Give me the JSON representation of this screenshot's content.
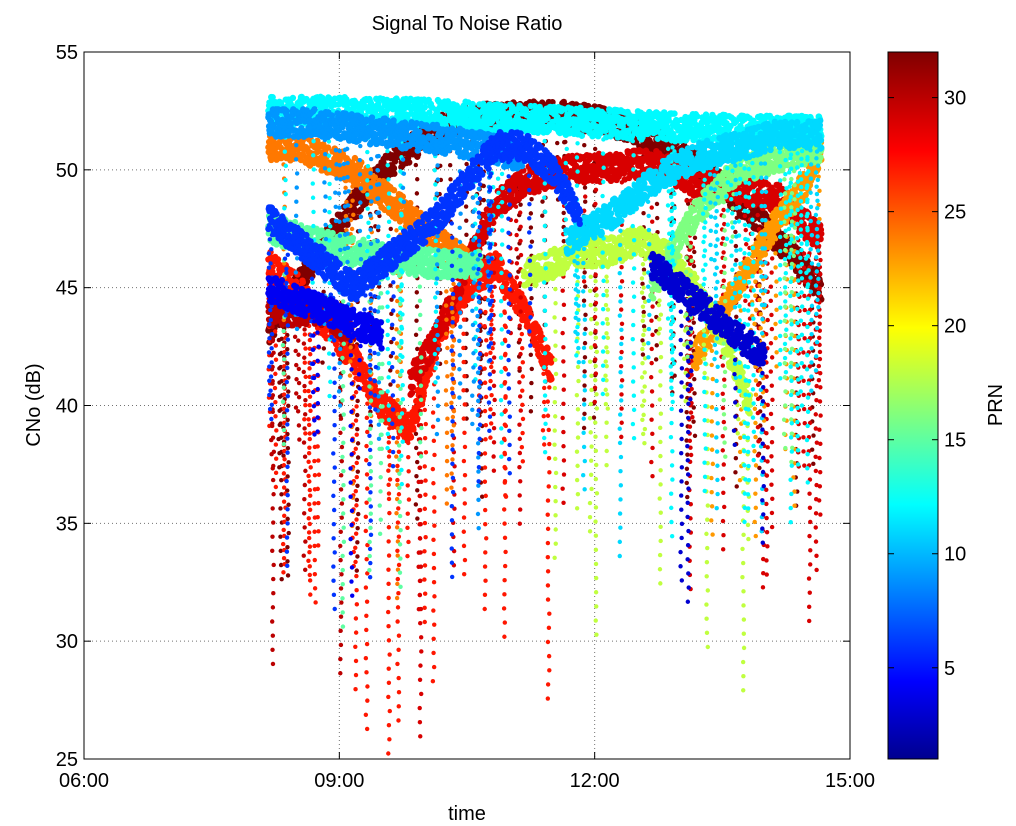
{
  "chart_data": {
    "type": "scatter",
    "title": "Signal To Noise Ratio",
    "xlabel": "time",
    "ylabel": "CNo (dB)",
    "xlim": [
      "06:00",
      "15:00"
    ],
    "ylim": [
      25,
      55
    ],
    "x_ticks": [
      "06:00",
      "09:00",
      "12:00",
      "15:00"
    ],
    "y_ticks": [
      25,
      30,
      35,
      40,
      45,
      50,
      55
    ],
    "grid": true,
    "color_by": "PRN",
    "colorbar": {
      "label": "PRN",
      "range": [
        1,
        32
      ],
      "ticks": [
        5,
        10,
        15,
        20,
        25,
        30
      ],
      "colormap": "jet",
      "colors": [
        "#00008f",
        "#0000ff",
        "#00ffff",
        "#ffff00",
        "#ff0000",
        "#800000"
      ]
    },
    "series": [
      {
        "prn": 32,
        "x": [
          "08:10",
          "08:40",
          "09:10",
          "09:40",
          "10:10",
          "10:40",
          "11:10",
          "11:40",
          "12:10",
          "12:40",
          "13:10",
          "13:40",
          "14:10",
          "14:40"
        ],
        "y": [
          43,
          46,
          48.5,
          50.5,
          51.8,
          52.2,
          52.3,
          52.3,
          52,
          51.4,
          50.2,
          48.8,
          47,
          45
        ]
      },
      {
        "prn": 27,
        "x": [
          "08:10",
          "08:30",
          "08:50",
          "09:10",
          "09:30",
          "09:50",
          "10:10",
          "10:30",
          "10:50",
          "11:10",
          "11:30"
        ],
        "y": [
          46,
          45,
          43.5,
          42,
          40,
          39,
          43,
          45,
          46,
          44,
          41.5
        ]
      },
      {
        "prn": 29,
        "x": [
          "09:50",
          "10:10",
          "10:30",
          "10:50",
          "11:10",
          "11:40",
          "12:10",
          "12:40",
          "13:10",
          "13:40",
          "14:10",
          "14:40"
        ],
        "y": [
          41,
          43,
          46,
          48.5,
          49.5,
          50,
          50.1,
          50.3,
          49.5,
          49.2,
          48.8,
          47
        ]
      },
      {
        "prn": 30,
        "x": [
          "08:10",
          "08:30",
          "08:50",
          "09:10"
        ],
        "y": [
          44,
          44,
          44,
          43
        ]
      },
      {
        "prn": 24,
        "x": [
          "08:10",
          "08:30",
          "08:50",
          "09:10",
          "09:30",
          "09:50",
          "10:10",
          "10:30"
        ],
        "y": [
          51,
          51,
          50.5,
          50,
          49,
          48,
          47,
          46
        ]
      },
      {
        "prn": 23,
        "x": [
          "13:10",
          "13:30",
          "13:50",
          "14:10",
          "14:30",
          "14:40"
        ],
        "y": [
          42,
          44,
          46,
          48,
          49.5,
          51
        ]
      },
      {
        "prn": 18,
        "x": [
          "11:10",
          "11:30",
          "11:50",
          "12:10",
          "12:30",
          "12:50",
          "13:10",
          "13:30",
          "13:50"
        ],
        "y": [
          45.5,
          46,
          46.5,
          46.5,
          47,
          46.5,
          45,
          43,
          40
        ]
      },
      {
        "prn": 15,
        "x": [
          "08:10",
          "08:40",
          "09:10",
          "09:40",
          "10:10",
          "10:40"
        ],
        "y": [
          47.5,
          47,
          46.5,
          46.2,
          46,
          46
        ]
      },
      {
        "prn": 16,
        "x": [
          "12:40",
          "13:10",
          "13:40",
          "14:10",
          "14:40"
        ],
        "y": [
          45,
          48,
          50,
          50.5,
          51
        ]
      },
      {
        "prn": 12,
        "x": [
          "08:10",
          "09:00",
          "10:00",
          "11:00",
          "12:00",
          "13:00",
          "14:00",
          "14:40"
        ],
        "y": [
          52.5,
          52.5,
          52.4,
          52.2,
          52,
          51.8,
          51.7,
          51.7
        ]
      },
      {
        "prn": 11,
        "x": [
          "11:40",
          "12:10",
          "12:40",
          "13:10",
          "13:40",
          "14:10",
          "14:40"
        ],
        "y": [
          47,
          48,
          49.5,
          50.5,
          51,
          51.5,
          51.5
        ]
      },
      {
        "prn": 9,
        "x": [
          "08:10",
          "08:40",
          "09:10",
          "09:40",
          "10:10",
          "10:40",
          "11:10"
        ],
        "y": [
          52,
          52,
          51.8,
          51.5,
          51.3,
          51,
          50.5
        ]
      },
      {
        "prn": 6,
        "x": [
          "08:10",
          "08:30",
          "08:50",
          "09:10",
          "09:30",
          "09:50",
          "10:10",
          "10:30",
          "10:50",
          "11:10",
          "11:30",
          "11:50"
        ],
        "y": [
          48,
          47,
          46,
          45,
          46,
          47,
          48,
          49.5,
          51,
          51,
          50,
          48
        ]
      },
      {
        "prn": 4,
        "x": [
          "08:10",
          "08:30",
          "08:50",
          "09:10",
          "09:30"
        ],
        "y": [
          45,
          44.5,
          44,
          43.5,
          43
        ]
      },
      {
        "prn": 3,
        "x": [
          "12:40",
          "13:00",
          "13:20",
          "13:40",
          "14:00"
        ],
        "y": [
          46,
          45,
          44,
          43,
          42
        ]
      }
    ]
  }
}
